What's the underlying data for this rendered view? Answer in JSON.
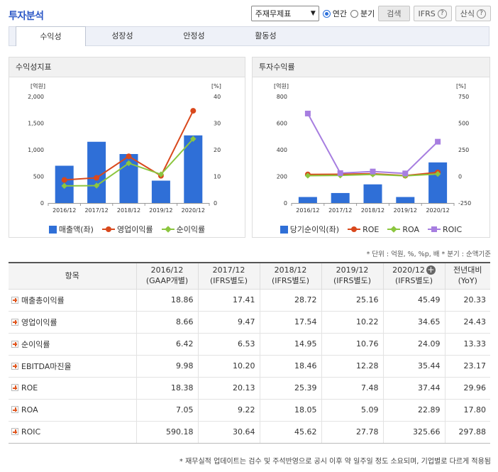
{
  "header": {
    "title": "투자분석",
    "select_value": "주재무제표",
    "radio_annual": "연간",
    "radio_quarter": "분기",
    "search_label": "검색",
    "ifrs_label": "IFRS",
    "formula_label": "산식"
  },
  "tabs": [
    "수익성",
    "성장성",
    "안정성",
    "활동성"
  ],
  "panels": {
    "left_title": "수익성지표",
    "right_title": "투자수익률"
  },
  "chart_data": [
    {
      "type": "bar",
      "title": "수익성지표",
      "categories": [
        "2016/12",
        "2017/12",
        "2018/12",
        "2019/12",
        "2020/12"
      ],
      "left_unit": "[억원]",
      "right_unit": "[%]",
      "left_ticks": [
        "2,000",
        "1,500",
        "1,000",
        "500",
        "0"
      ],
      "right_ticks": [
        "40",
        "30",
        "20",
        "10",
        "0"
      ],
      "ylim_left": [
        0,
        2000
      ],
      "ylim_right": [
        0,
        40
      ],
      "bar_series": {
        "name": "매출액(좌)",
        "color": "#2f6fd7",
        "values": [
          700,
          1150,
          920,
          420,
          1270
        ]
      },
      "line_series": [
        {
          "name": "영업이익률",
          "color": "#d9481c",
          "marker": "circle",
          "values": [
            8.66,
            9.47,
            17.54,
            10.22,
            34.65
          ]
        },
        {
          "name": "순이익률",
          "color": "#8cc63f",
          "marker": "diamond",
          "values": [
            6.42,
            6.53,
            14.95,
            10.76,
            24.09
          ]
        }
      ]
    },
    {
      "type": "bar",
      "title": "투자수익률",
      "categories": [
        "2016/12",
        "2017/12",
        "2018/12",
        "2019/12",
        "2020/12"
      ],
      "left_unit": "[억원]",
      "right_unit": "[%]",
      "left_ticks": [
        "800",
        "600",
        "400",
        "200",
        "0"
      ],
      "right_ticks": [
        "750",
        "500",
        "250",
        "0",
        "-250"
      ],
      "ylim_left": [
        0,
        800
      ],
      "ylim_right": [
        -250,
        750
      ],
      "bar_series": {
        "name": "당기순이익(좌)",
        "color": "#2f6fd7",
        "values": [
          45,
          75,
          140,
          45,
          305
        ]
      },
      "line_series": [
        {
          "name": "ROE",
          "color": "#d9481c",
          "marker": "circle",
          "values": [
            18.38,
            20.13,
            25.39,
            7.48,
            37.44
          ]
        },
        {
          "name": "ROA",
          "color": "#8cc63f",
          "marker": "diamond",
          "values": [
            7.05,
            9.22,
            18.05,
            5.09,
            22.89
          ]
        },
        {
          "name": "ROIC",
          "color": "#a77ee0",
          "marker": "square",
          "values": [
            590.18,
            30.64,
            45.62,
            27.78,
            325.66
          ]
        }
      ]
    }
  ],
  "unit_note": "* 단위 : 억원, %, %p, 배  * 분기 : 순액기준",
  "table": {
    "col_item": "항목",
    "columns": [
      {
        "year": "2016/12",
        "std": "(GAAP개별)"
      },
      {
        "year": "2017/12",
        "std": "(IFRS별도)"
      },
      {
        "year": "2018/12",
        "std": "(IFRS별도)"
      },
      {
        "year": "2019/12",
        "std": "(IFRS별도)"
      },
      {
        "year": "2020/12",
        "std": "(IFRS별도)"
      }
    ],
    "col_yoy_1": "전년대비",
    "col_yoy_2": "(YoY)",
    "rows": [
      {
        "label": "매출총이익률",
        "values": [
          "18.86",
          "17.41",
          "28.72",
          "25.16",
          "45.49"
        ],
        "yoy": "20.33"
      },
      {
        "label": "영업이익률",
        "values": [
          "8.66",
          "9.47",
          "17.54",
          "10.22",
          "34.65"
        ],
        "yoy": "24.43"
      },
      {
        "label": "순이익률",
        "values": [
          "6.42",
          "6.53",
          "14.95",
          "10.76",
          "24.09"
        ],
        "yoy": "13.33"
      },
      {
        "label": "EBITDA마진율",
        "values": [
          "9.98",
          "10.20",
          "18.46",
          "12.28",
          "35.44"
        ],
        "yoy": "23.17"
      },
      {
        "label": "ROE",
        "values": [
          "18.38",
          "20.13",
          "25.39",
          "7.48",
          "37.44"
        ],
        "yoy": "29.96"
      },
      {
        "label": "ROA",
        "values": [
          "7.05",
          "9.22",
          "18.05",
          "5.09",
          "22.89"
        ],
        "yoy": "17.80"
      },
      {
        "label": "ROIC",
        "values": [
          "590.18",
          "30.64",
          "45.62",
          "27.78",
          "325.66"
        ],
        "yoy": "297.88"
      }
    ]
  },
  "footnote": "* 재무실적 업데이트는 검수 및 주석반영으로 공시 이후 약 일주일 정도 소요되며, 기업별로 다르게 적용됨"
}
